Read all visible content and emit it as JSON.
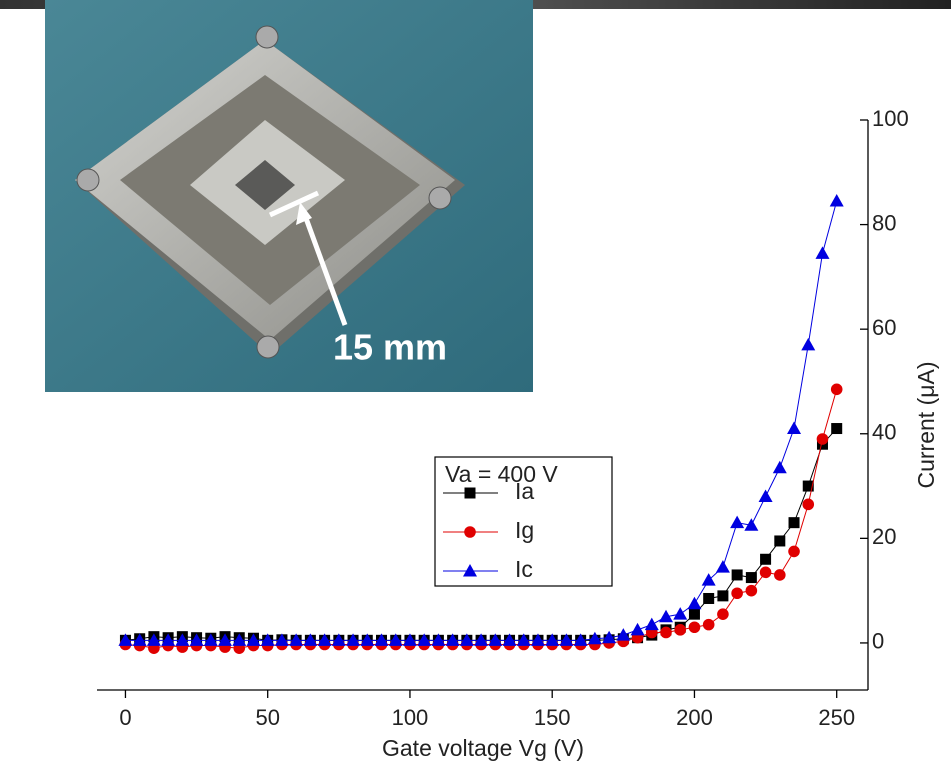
{
  "chart_data": {
    "type": "line",
    "inset_label": "15 mm",
    "x_label": "Gate voltage Vg (V)",
    "y_label": "Current (μA)",
    "legend_title": "Va = 400 V",
    "legend_position": "center-right",
    "xlim": [
      -10,
      261
    ],
    "xticks": [
      0,
      50,
      100,
      150,
      200,
      250
    ],
    "ylim": [
      -9,
      100
    ],
    "yticks": [
      0,
      20,
      40,
      60,
      80,
      100
    ],
    "x": [
      0,
      5,
      10,
      15,
      20,
      25,
      30,
      35,
      40,
      45,
      50,
      55,
      60,
      65,
      70,
      75,
      80,
      85,
      90,
      95,
      100,
      105,
      110,
      115,
      120,
      125,
      130,
      135,
      140,
      145,
      150,
      155,
      160,
      165,
      170,
      175,
      180,
      185,
      190,
      195,
      200,
      205,
      210,
      215,
      220,
      225,
      230,
      235,
      240,
      245,
      250
    ],
    "series": [
      {
        "name": "Ia",
        "color": "#000000",
        "marker": "square",
        "values": [
          0.5,
          0.8,
          1.2,
          1,
          1.2,
          1,
          0.9,
          1.2,
          1,
          0.9,
          0.5,
          0.6,
          0.5,
          0.5,
          0.5,
          0.5,
          0.5,
          0.5,
          0.5,
          0.5,
          0.5,
          0.5,
          0.5,
          0.5,
          0.5,
          0.5,
          0.5,
          0.5,
          0.5,
          0.5,
          0.5,
          0.5,
          0.5,
          0.5,
          0.6,
          0.8,
          1,
          1.5,
          2.5,
          3,
          5.5,
          8.5,
          9,
          13,
          12.5,
          16,
          19.5,
          23,
          30,
          38,
          41
        ]
      },
      {
        "name": "Ig",
        "color": "#e00000",
        "marker": "circle",
        "values": [
          -0.3,
          -0.5,
          -1,
          -0.5,
          -0.8,
          -0.5,
          -0.5,
          -0.8,
          -1,
          -0.5,
          -0.5,
          -0.3,
          -0.3,
          -0.3,
          -0.3,
          -0.3,
          -0.3,
          -0.3,
          -0.3,
          -0.3,
          -0.3,
          -0.3,
          -0.3,
          -0.3,
          -0.3,
          -0.3,
          -0.3,
          -0.3,
          -0.3,
          -0.3,
          -0.3,
          -0.3,
          -0.3,
          -0.3,
          0,
          0.3,
          1,
          2,
          2,
          2.5,
          3,
          3.5,
          5.5,
          9.5,
          10,
          13.5,
          13,
          17.5,
          26.5,
          39,
          48.5
        ]
      },
      {
        "name": "Ic",
        "color": "#0000e0",
        "marker": "triangle",
        "values": [
          0.5,
          0.5,
          0.5,
          0.5,
          0.5,
          0.5,
          0.5,
          0.5,
          0.5,
          0.5,
          0.5,
          0.5,
          0.5,
          0.5,
          0.5,
          0.5,
          0.5,
          0.5,
          0.5,
          0.5,
          0.5,
          0.5,
          0.5,
          0.5,
          0.5,
          0.5,
          0.5,
          0.5,
          0.5,
          0.5,
          0.5,
          0.5,
          0.5,
          0.8,
          1,
          1.5,
          2.5,
          3.5,
          5,
          5.5,
          7.5,
          12,
          14.5,
          23,
          22.5,
          28,
          33.5,
          41,
          57,
          74.5,
          84.5
        ]
      }
    ]
  }
}
